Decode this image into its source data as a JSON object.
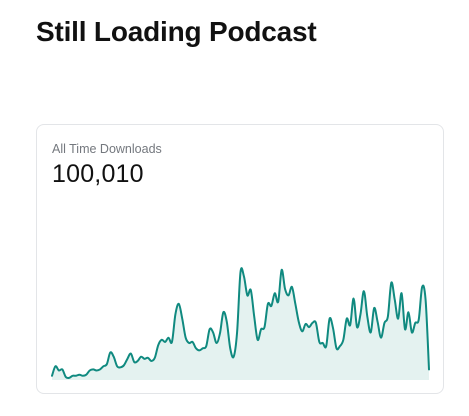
{
  "header": {
    "title": "Still Loading Podcast"
  },
  "downloads_card": {
    "label": "All Time Downloads",
    "value": "100,010"
  },
  "chart_data": {
    "type": "area",
    "line_color": "#108a80",
    "fill_color": "#e4f2f0",
    "grid": false,
    "axes_visible": false,
    "values": [
      4,
      13,
      9,
      10,
      3,
      2,
      4,
      4,
      5,
      4,
      5,
      9,
      10,
      9,
      10,
      13,
      15,
      26,
      22,
      13,
      12,
      14,
      20,
      25,
      17,
      18,
      22,
      20,
      21,
      18,
      21,
      33,
      38,
      36,
      40,
      36,
      62,
      72,
      58,
      40,
      35,
      36,
      30,
      28,
      30,
      32,
      48,
      45,
      35,
      44,
      64,
      55,
      30,
      22,
      45,
      102,
      98,
      80,
      85,
      60,
      38,
      48,
      50,
      72,
      70,
      82,
      74,
      104,
      86,
      80,
      88,
      72,
      55,
      46,
      53,
      50,
      54,
      54,
      36,
      35,
      32,
      58,
      49,
      30,
      32,
      38,
      58,
      52,
      77,
      50,
      62,
      84,
      60,
      45,
      68,
      55,
      40,
      54,
      60,
      92,
      76,
      58,
      82,
      48,
      64,
      45,
      54,
      57,
      88,
      76,
      10
    ]
  }
}
